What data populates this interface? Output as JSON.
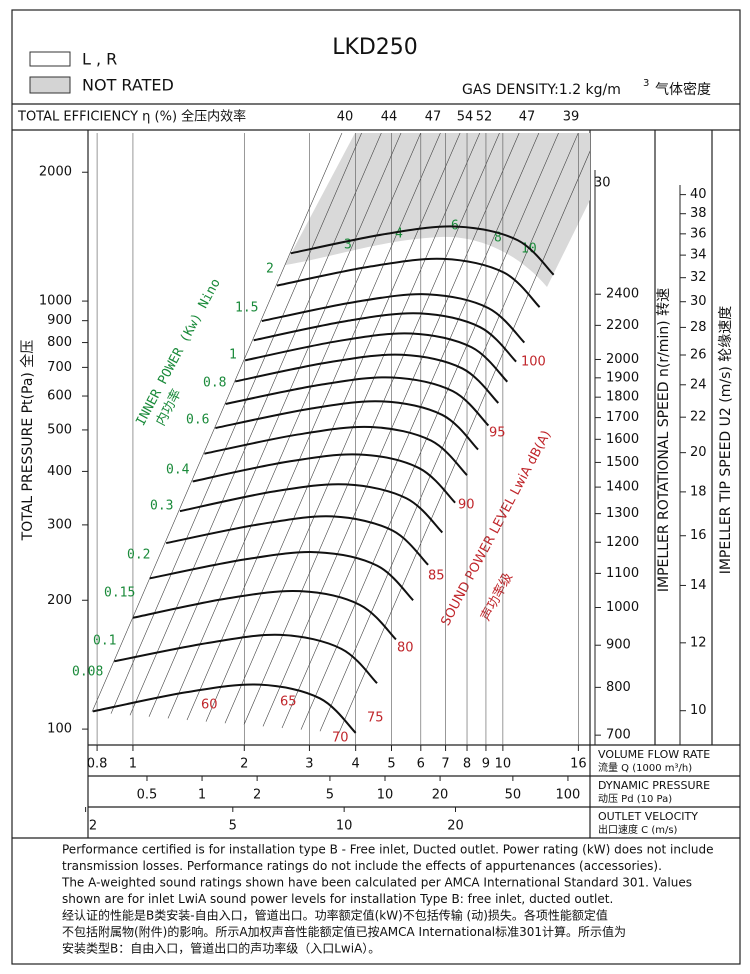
{
  "chart_data": {
    "type": "line",
    "title": "LKD250",
    "legend": [
      "L , R",
      "NOT RATED"
    ],
    "gas_density": "GAS DENSITY:1.2 kg/m",
    "gas_density_sup": "3",
    "gas_density_cn": "气体密度",
    "efficiency_title": "TOTAL EFFICIENCY η (%) 全压内效率",
    "efficiency_labels": [
      40,
      44,
      47,
      54,
      52,
      47,
      39
    ],
    "y_label": "TOTAL PRESSURE Pt(Pa) 全压",
    "speed_label": "IMPELLER ROTATIONAL SPEED n(r/min) 转速",
    "tip_label": "IMPELLER TIP SPEED U2 (m/s) 轮缘速度",
    "power_label": "INNER POWER (Kw) Nino",
    "power_label_cn": "内功率",
    "sound_label": "SOUND POWER LEVEL LwiA dB(A)",
    "sound_label_cn": "声功率级",
    "flow_label": "VOLUME FLOW RATE",
    "flow_label_cn": "流量 Q (1000 m³/h)",
    "pd_label": "DYNAMIC PRESSURE",
    "pd_label_cn": "动压 Pd (10 Pa)",
    "c_label": "OUTLET VELOCITY",
    "c_label_cn": "出口速度 C (m/s)",
    "log_scale": true,
    "xlim": [
      0.756,
      17.2
    ],
    "xticks": [
      0.8,
      1,
      2,
      3,
      4,
      5,
      6,
      7,
      8,
      9,
      10,
      16
    ],
    "ylim": [
      91.8,
      2470
    ],
    "yticks": [
      100,
      200,
      300,
      400,
      500,
      600,
      700,
      800,
      900,
      1000,
      2000
    ],
    "pd_lim": [
      0.238,
      132
    ],
    "pd_ticks": [
      0.5,
      1,
      2,
      5,
      10,
      20,
      50,
      100
    ],
    "c_lim": [
      2.03,
      46.2
    ],
    "c_ticks": [
      2,
      5,
      10,
      20
    ],
    "n_lim": [
      681,
      3766
    ],
    "n_ticks": [
      700,
      800,
      900,
      1000,
      1100,
      1200,
      1300,
      1400,
      1500,
      1600,
      1700,
      1800,
      1900,
      2000,
      2200,
      2400
    ],
    "n_extra": 30,
    "u_lim": [
      9.12,
      47.2
    ],
    "u_ticks": [
      10,
      12,
      14,
      16,
      18,
      20,
      22,
      24,
      26,
      28,
      30,
      32,
      34,
      36,
      38,
      40
    ],
    "power_labels": [
      0.08,
      0.1,
      0.15,
      0.2,
      0.3,
      0.4,
      0.6,
      0.8,
      1,
      1.5,
      2,
      3,
      4,
      6,
      8,
      10
    ],
    "sound_labels": [
      60,
      65,
      70,
      75,
      80,
      85,
      90,
      95,
      100
    ],
    "series": [
      {
        "name": "700",
        "color": "#111",
        "x": [
          0.78,
          1.4,
          2.2,
          3.2,
          4.0
        ],
        "values": [
          110,
          122,
          127,
          118,
          98
        ]
      },
      {
        "name": "800",
        "color": "#111",
        "x": [
          0.89,
          1.6,
          2.51,
          3.66,
          4.57
        ],
        "values": [
          144,
          159,
          166,
          154,
          128
        ]
      },
      {
        "name": "900",
        "color": "#111",
        "x": [
          1.0,
          1.8,
          2.83,
          4.11,
          5.14
        ],
        "values": [
          182,
          202,
          210,
          195,
          162
        ]
      },
      {
        "name": "1000",
        "color": "#111",
        "x": [
          1.11,
          2.0,
          3.14,
          4.57,
          5.72
        ],
        "values": [
          225,
          249,
          259,
          241,
          200
        ]
      },
      {
        "name": "1100",
        "color": "#111",
        "x": [
          1.23,
          2.2,
          3.46,
          5.03,
          6.28
        ],
        "values": [
          272,
          301,
          314,
          291,
          242
        ]
      },
      {
        "name": "1200",
        "color": "#111",
        "x": [
          1.34,
          2.4,
          3.77,
          5.49,
          6.86
        ],
        "values": [
          323,
          359,
          373,
          346,
          288
        ]
      },
      {
        "name": "1300",
        "color": "#111",
        "x": [
          1.45,
          2.6,
          4.09,
          5.94,
          7.43
        ],
        "values": [
          379,
          421,
          438,
          407,
          338
        ]
      },
      {
        "name": "1400",
        "color": "#111",
        "x": [
          1.56,
          2.8,
          4.4,
          6.4,
          8.0
        ],
        "values": [
          440,
          488,
          508,
          472,
          392
        ]
      },
      {
        "name": "1500",
        "color": "#111",
        "x": [
          1.67,
          3.0,
          4.71,
          6.86,
          8.57
        ],
        "values": [
          505,
          560,
          583,
          542,
          450
        ]
      },
      {
        "name": "1600",
        "color": "#111",
        "x": [
          1.78,
          3.2,
          5.03,
          7.32,
          9.14
        ],
        "values": [
          575,
          637,
          663,
          616,
          512
        ]
      },
      {
        "name": "1700",
        "color": "#111",
        "x": [
          1.89,
          3.4,
          5.34,
          7.77,
          9.72
        ],
        "values": [
          649,
          720,
          749,
          696,
          578
        ]
      },
      {
        "name": "1800",
        "color": "#111",
        "x": [
          2.01,
          3.6,
          5.66,
          8.23,
          10.28
        ],
        "values": [
          727,
          807,
          840,
          780,
          648
        ]
      },
      {
        "name": "1900",
        "color": "#111",
        "x": [
          2.12,
          3.8,
          5.97,
          8.68,
          10.86
        ],
        "values": [
          810,
          899,
          936,
          869,
          722
        ]
      },
      {
        "name": "2000",
        "color": "#111",
        "x": [
          2.23,
          4.0,
          6.29,
          9.14,
          11.43
        ],
        "values": [
          898,
          996,
          1037,
          963,
          800
        ]
      },
      {
        "name": "2200",
        "color": "#111",
        "x": [
          2.45,
          4.4,
          6.91,
          10.06,
          12.57
        ],
        "values": [
          1087,
          1205,
          1255,
          1166,
          968
        ]
      },
      {
        "name": "2400",
        "color": "#111",
        "x": [
          2.67,
          4.8,
          7.54,
          10.97,
          13.72
        ],
        "values": [
          1293,
          1434,
          1493,
          1387,
          1152
        ]
      }
    ],
    "footnote": [
      "Performance certified is for installation type B - Free inlet, Ducted outlet. Power rating (kW) does not include",
      "transmission losses. Performance ratings do not include the effects of appurtenances (accessories).",
      "The A-weighted sound ratings shown have been calculated per AMCA International Standard 301. Values",
      "shown are for inlet LwiA sound power levels for installation Type B: free inlet, ducted outlet.",
      "经认证的性能是B类安装-自由入口，管道出口。功率额定值(kW)不包括传输 (动)损失。各项性能额定值",
      "不包括附属物(附件)的影响。所示A加权声音性能额定值已按AMCA International标准301计算。所示值为",
      "安装类型B：自由入口，管道出口的声功率级（入口LwiA）。"
    ]
  }
}
